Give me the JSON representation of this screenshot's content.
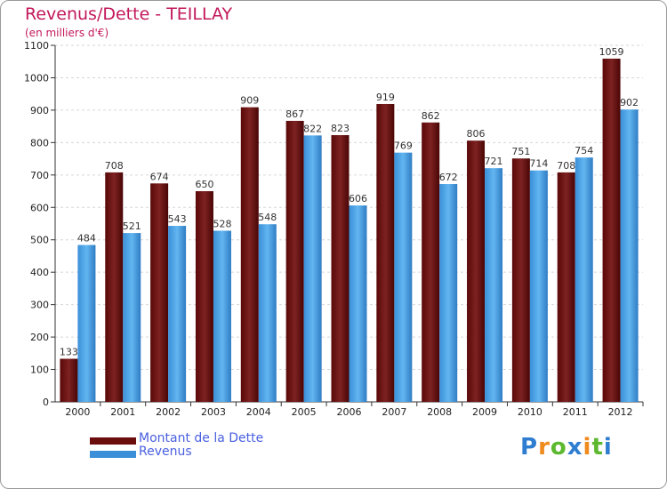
{
  "header": {
    "title": "Revenus/Dette - TEILLAY",
    "subtitle": "(en milliers d'€)"
  },
  "chart_data": {
    "type": "bar",
    "title": "Revenus/Dette - TEILLAY",
    "ylabel": "(en milliers d'€)",
    "xlabel": "",
    "categories": [
      "2000",
      "2001",
      "2002",
      "2003",
      "2004",
      "2005",
      "2006",
      "2007",
      "2008",
      "2009",
      "2010",
      "2011",
      "2012"
    ],
    "series": [
      {
        "name": "Montant de la Dette",
        "values": [
          133,
          708,
          674,
          650,
          909,
          867,
          823,
          919,
          862,
          806,
          751,
          708,
          1059
        ]
      },
      {
        "name": "Revenus",
        "values": [
          484,
          521,
          543,
          528,
          548,
          822,
          606,
          769,
          672,
          721,
          714,
          754,
          902
        ]
      }
    ],
    "ylim": [
      0,
      1100
    ],
    "yticks": [
      0,
      100,
      200,
      300,
      400,
      500,
      600,
      700,
      800,
      900,
      1000,
      1100
    ],
    "grid": true,
    "legend": "bottom-left"
  },
  "legend": {
    "debt_label": "Montant de la Dette",
    "revenue_label": "Revenus"
  },
  "colors": {
    "debt": "#6b0d0d",
    "debt_light": "#8a3030",
    "revenue": "#3a8fd8",
    "revenue_light": "#5ab0ec",
    "title": "#c2185b",
    "legend_text": "#4a60e0"
  },
  "logo": {
    "letters": [
      "P",
      "r",
      "o",
      "x",
      "i",
      "t",
      "i"
    ],
    "colors": [
      "#2e7dd1",
      "#f08a1c",
      "#5cb82e",
      "#2e7dd1",
      "#f08a1c",
      "#5cb82e",
      "#2e7dd1"
    ]
  }
}
